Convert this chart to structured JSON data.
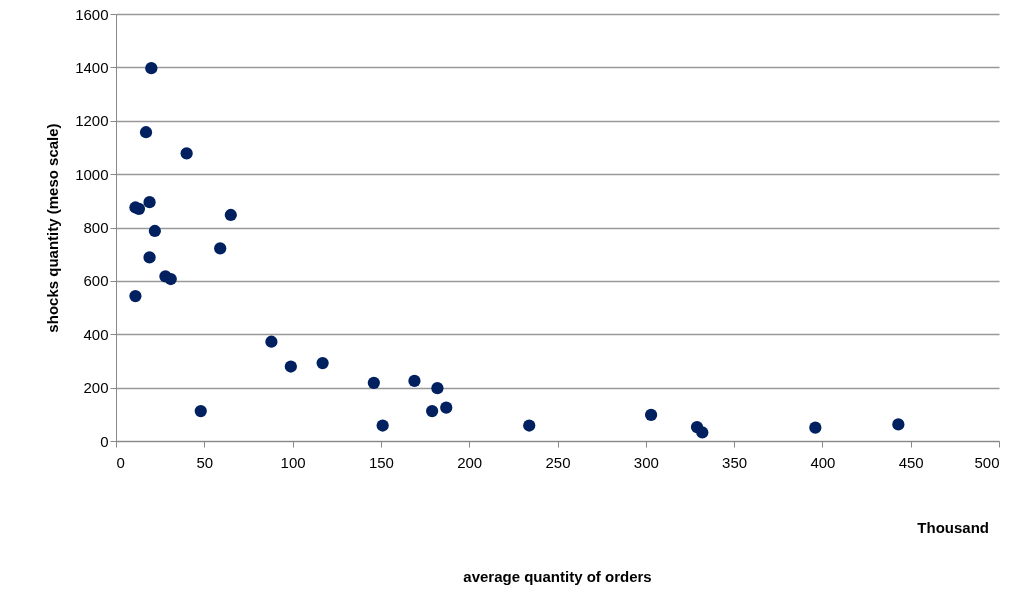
{
  "chart_data": {
    "type": "scatter",
    "ylabel": "shocks quantity (meso scale)",
    "annotations": [
      "Thousand",
      "average quantity of orders"
    ],
    "x": [
      11,
      13,
      11,
      17,
      19,
      20,
      19,
      22,
      28,
      31,
      40,
      48,
      59,
      65,
      88,
      99,
      117,
      146,
      151,
      169,
      179,
      182,
      187,
      234,
      303,
      329,
      332,
      396,
      443
    ],
    "series": [
      {
        "color": "#002060",
        "values": [
          875,
          870,
          543,
          1157,
          895,
          1397,
          688,
          787,
          617,
          607,
          1078,
          112,
          722,
          847,
          372,
          279,
          292,
          218,
          58,
          225,
          112,
          198,
          125,
          58,
          98,
          52,
          32,
          50,
          62
        ]
      }
    ],
    "xlim": [
      0,
      500
    ],
    "xticks": [
      0,
      50,
      100,
      150,
      200,
      250,
      300,
      350,
      400,
      450,
      500
    ],
    "ylim": [
      0,
      1600
    ],
    "yticks": [
      0,
      200,
      400,
      600,
      800,
      1000,
      1200,
      1400,
      1600
    ],
    "grid": "y",
    "marker": "circle",
    "legend": false
  }
}
